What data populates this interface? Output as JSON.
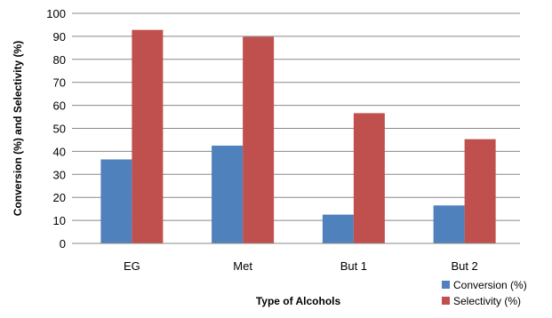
{
  "chart_data": {
    "type": "bar",
    "categories": [
      "EG",
      "Met",
      "But 1",
      "But 2"
    ],
    "series": [
      {
        "name": "Conversion (%)",
        "values": [
          36.5,
          42.5,
          12.5,
          16.5
        ],
        "color": "#4f81bd"
      },
      {
        "name": "Selectivity (%)",
        "values": [
          92.8,
          89.8,
          56.6,
          45.3
        ],
        "color": "#c0504d"
      }
    ],
    "title": "",
    "xlabel": "Type of Alcohols",
    "ylabel": "Conversion (%) and Selectivity (%)",
    "ylim": [
      0,
      100
    ],
    "yticks": [
      "0",
      "10",
      "20",
      "30",
      "40",
      "50",
      "60",
      "70",
      "80",
      "90",
      "100"
    ],
    "grid": true,
    "legend_position": "bottom-right"
  }
}
